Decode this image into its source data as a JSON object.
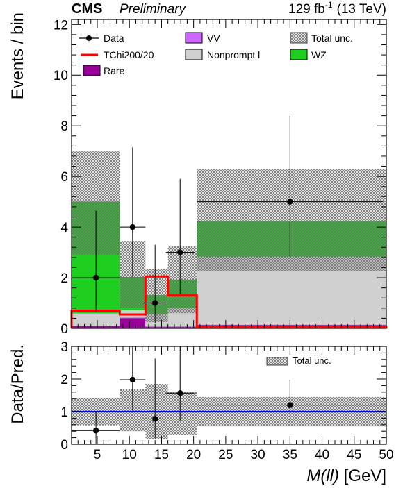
{
  "header": {
    "experiment": "CMS",
    "status": "Preliminary",
    "lumi_value": "129 fb",
    "lumi_exp": "-1",
    "energy": "(13 TeV)"
  },
  "legend": {
    "data": "Data",
    "vv": "VV",
    "total_unc": "Total unc.",
    "signal": "TChi200/20",
    "nonprompt": "Nonprompt l",
    "wz": "WZ",
    "rare": "Rare"
  },
  "ratio_legend": {
    "total_unc": "Total unc."
  },
  "colors": {
    "wz": "#1fcf1f",
    "nonprompt": "#d0d0d0",
    "rare": "#990099",
    "vv": "#cc66ff",
    "signal": "#ff0000",
    "ratio_line": "#0000ff"
  },
  "chart_data": [
    {
      "type": "bar",
      "stacked": true,
      "ylabel": "Events / bin",
      "xlim": [
        1,
        50
      ],
      "ylim": [
        0,
        12.2
      ],
      "yticks": [
        0,
        2,
        4,
        6,
        8,
        10,
        12
      ],
      "bin_edges": [
        1,
        8.5,
        12.5,
        16,
        20.5,
        50
      ],
      "series": [
        {
          "name": "Rare",
          "values": [
            0.08,
            0.4,
            0.05,
            0.05,
            0.12
          ]
        },
        {
          "name": "VV",
          "values": [
            0.02,
            0.02,
            0.02,
            0.02,
            0.02
          ]
        },
        {
          "name": "Nonprompt l",
          "values": [
            0.5,
            0.3,
            0.5,
            0.75,
            2.7
          ]
        },
        {
          "name": "WZ",
          "values": [
            4.4,
            1.3,
            0.73,
            1.1,
            1.4
          ]
        }
      ],
      "total_unc_band": {
        "low": [
          2.9,
          0.8,
          0.25,
          0.6,
          2.25
        ],
        "high": [
          7.0,
          3.45,
          2.35,
          3.25,
          6.3
        ]
      },
      "signal": {
        "name": "TChi200/20",
        "values": [
          0.7,
          0.55,
          2.05,
          1.3,
          0.05
        ]
      },
      "data": {
        "x": [
          4.8,
          10.5,
          14.0,
          17.9,
          35.0
        ],
        "xerr": [
          3.7,
          2.0,
          1.75,
          2.2,
          14.5
        ],
        "y": [
          2,
          4,
          1,
          3,
          5
        ],
        "yerr_low": [
          1.35,
          1.95,
          0.8,
          1.65,
          2.2
        ],
        "yerr_high": [
          2.65,
          3.15,
          2.3,
          2.9,
          3.4
        ]
      }
    },
    {
      "type": "scatter",
      "ylabel": "Data/Pred.",
      "xlabel": "M(ll) [GeV]",
      "xlim": [
        1,
        50
      ],
      "ylim": [
        0,
        3
      ],
      "yticks": [
        0,
        1,
        2,
        3
      ],
      "xticks": [
        5,
        10,
        15,
        20,
        25,
        30,
        35,
        40,
        45,
        50
      ],
      "reference_line": 1,
      "total_unc_band": {
        "low": [
          0.58,
          0.4,
          0.15,
          0.3,
          0.55
        ],
        "high": [
          1.42,
          1.7,
          1.85,
          1.62,
          1.45
        ]
      },
      "x": [
        4.8,
        10.5,
        14.0,
        17.9,
        35.0
      ],
      "xerr": [
        3.7,
        2.0,
        1.75,
        2.2,
        14.5
      ],
      "y": [
        0.42,
        1.98,
        0.78,
        1.57,
        1.2
      ],
      "yerr_low": [
        0.42,
        0.95,
        0.6,
        0.85,
        0.5
      ],
      "yerr_high": [
        0.6,
        1.5,
        1.85,
        1.5,
        0.78
      ]
    }
  ]
}
